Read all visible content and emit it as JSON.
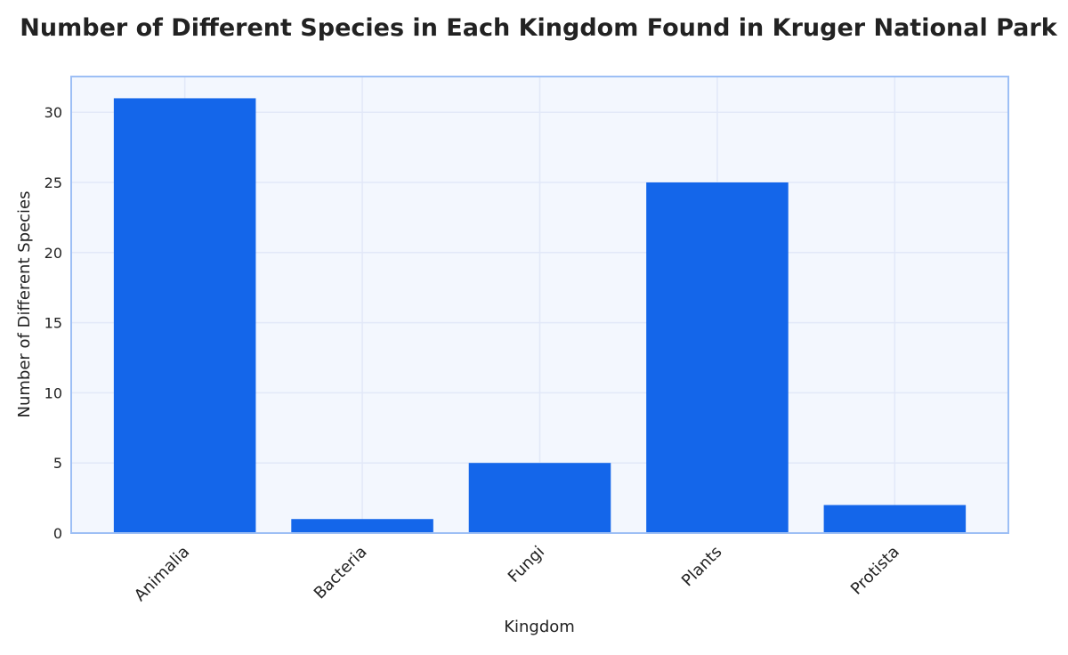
{
  "chart_data": {
    "type": "bar",
    "title": "Number of Different Species in Each Kingdom Found in Kruger National Park",
    "xlabel": "Kingdom",
    "ylabel": "Number of Different Species",
    "categories": [
      "Animalia",
      "Bacteria",
      "Fungi",
      "Plants",
      "Protista"
    ],
    "values": [
      31,
      1,
      5,
      25,
      2
    ],
    "ylim": [
      0,
      32.55
    ],
    "yticks": [
      0,
      5,
      10,
      15,
      20,
      25,
      30
    ],
    "grid": true,
    "legend": "none",
    "colors": {
      "bar": "#1466EA",
      "plot_bg": "#F3F7FE",
      "frame": "#9DBFF5",
      "grid": "#E2E8F8"
    }
  }
}
